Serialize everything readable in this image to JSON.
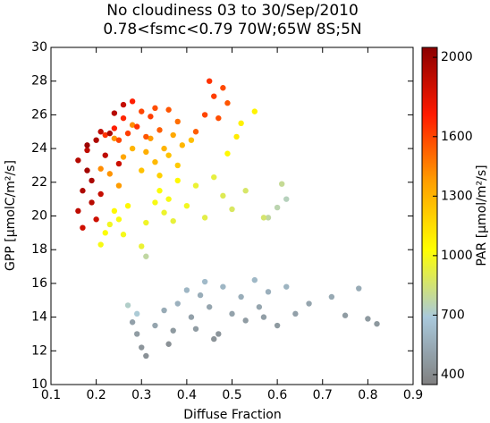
{
  "chart_data": {
    "type": "scatter",
    "title": "No cloudiness    03 to 30/Sep/2010",
    "subtitle": "0.78<fsmc<0.79    70W;65W 8S;5N",
    "x_label": "Diffuse Fraction",
    "y_label": "GPP [μmolC/m²/s]",
    "colorbar_label": "PAR [μmol/m²/s]",
    "xlim": [
      0.1,
      0.9
    ],
    "xticks": [
      0.1,
      0.2,
      0.3,
      0.4,
      0.5,
      0.6,
      0.7,
      0.8,
      0.9
    ],
    "ylim": [
      10,
      30
    ],
    "yticks": [
      10,
      12,
      14,
      16,
      18,
      20,
      22,
      24,
      26,
      28,
      30
    ],
    "clim": [
      350,
      2050
    ],
    "cticks": [
      400,
      700,
      1000,
      1300,
      1600,
      2000
    ],
    "colormap": [
      "#808080",
      "#a9c9dc",
      "#ffff00",
      "#ffa000",
      "#ff1a00",
      "#8b0000"
    ],
    "x": [
      0.28,
      0.29,
      0.3,
      0.31,
      0.33,
      0.35,
      0.37,
      0.38,
      0.4,
      0.41,
      0.42,
      0.43,
      0.44,
      0.45,
      0.47,
      0.48,
      0.5,
      0.52,
      0.53,
      0.55,
      0.56,
      0.58,
      0.6,
      0.62,
      0.64,
      0.67,
      0.72,
      0.75,
      0.78,
      0.8,
      0.82,
      0.46,
      0.36,
      0.57,
      0.27,
      0.29,
      0.31,
      0.6,
      0.62,
      0.61,
      0.58,
      0.21,
      0.22,
      0.23,
      0.24,
      0.25,
      0.26,
      0.27,
      0.3,
      0.31,
      0.33,
      0.34,
      0.35,
      0.36,
      0.37,
      0.38,
      0.4,
      0.42,
      0.44,
      0.46,
      0.48,
      0.5,
      0.53,
      0.57,
      0.51,
      0.52,
      0.49,
      0.55,
      0.26,
      0.28,
      0.3,
      0.31,
      0.32,
      0.33,
      0.34,
      0.35,
      0.36,
      0.37,
      0.38,
      0.39,
      0.41,
      0.23,
      0.25,
      0.21,
      0.24,
      0.28,
      0.22,
      0.24,
      0.25,
      0.26,
      0.27,
      0.28,
      0.29,
      0.3,
      0.31,
      0.32,
      0.33,
      0.34,
      0.36,
      0.38,
      0.44,
      0.45,
      0.46,
      0.47,
      0.48,
      0.49,
      0.42,
      0.16,
      0.17,
      0.17,
      0.18,
      0.18,
      0.19,
      0.2,
      0.21,
      0.19,
      0.2,
      0.22,
      0.23,
      0.24,
      0.26,
      0.18,
      0.16,
      0.21,
      0.25
    ],
    "y": [
      13.7,
      13.0,
      12.2,
      11.7,
      13.5,
      14.4,
      13.2,
      14.8,
      15.6,
      14.0,
      13.3,
      15.3,
      16.1,
      14.6,
      13.0,
      15.8,
      14.2,
      15.2,
      13.8,
      16.2,
      14.6,
      15.5,
      13.5,
      15.8,
      14.2,
      14.8,
      15.2,
      14.1,
      15.7,
      13.9,
      13.6,
      12.7,
      12.4,
      14.0,
      14.7,
      14.2,
      17.6,
      20.5,
      21.0,
      21.9,
      19.9,
      18.3,
      19.0,
      19.5,
      20.3,
      19.8,
      18.9,
      20.6,
      18.2,
      19.6,
      20.8,
      21.5,
      20.2,
      21.0,
      19.7,
      22.1,
      20.6,
      21.8,
      19.9,
      22.3,
      21.2,
      20.4,
      21.5,
      19.9,
      24.7,
      25.5,
      23.7,
      26.2,
      23.5,
      24.0,
      22.7,
      23.8,
      24.6,
      23.2,
      22.4,
      24.0,
      23.6,
      24.8,
      23.0,
      24.2,
      24.5,
      22.5,
      21.8,
      22.8,
      24.6,
      25.4,
      24.8,
      25.2,
      24.5,
      25.8,
      24.9,
      26.8,
      25.3,
      26.2,
      24.7,
      25.9,
      26.4,
      25.1,
      26.3,
      25.6,
      26.0,
      28.0,
      27.1,
      25.8,
      27.6,
      26.7,
      25.0,
      20.3,
      21.5,
      19.3,
      22.7,
      23.9,
      20.8,
      24.5,
      21.3,
      22.1,
      19.8,
      23.6,
      24.9,
      26.1,
      26.6,
      24.2,
      23.3,
      25.0,
      23.1
    ],
    "c": [
      500,
      480,
      450,
      430,
      520,
      550,
      470,
      580,
      600,
      500,
      480,
      560,
      620,
      520,
      450,
      600,
      510,
      560,
      480,
      610,
      520,
      570,
      470,
      590,
      500,
      520,
      540,
      480,
      550,
      470,
      460,
      440,
      430,
      490,
      720,
      700,
      780,
      760,
      740,
      800,
      780,
      1000,
      1020,
      980,
      1050,
      1010,
      990,
      1060,
      950,
      970,
      1000,
      1020,
      960,
      1000,
      940,
      1050,
      980,
      950,
      920,
      930,
      900,
      880,
      870,
      860,
      1100,
      1080,
      1050,
      1070,
      1350,
      1300,
      1250,
      1320,
      1380,
      1280,
      1200,
      1300,
      1250,
      1340,
      1220,
      1290,
      1260,
      1400,
      1380,
      1420,
      1400,
      1420,
      1650,
      1700,
      1600,
      1680,
      1620,
      1700,
      1650,
      1600,
      1560,
      1620,
      1580,
      1540,
      1560,
      1500,
      1600,
      1650,
      1620,
      1580,
      1590,
      1560,
      1540,
      1900,
      1950,
      1850,
      1980,
      1900,
      1920,
      1950,
      1880,
      1960,
      1860,
      1900,
      1950,
      1920,
      1880,
      2000,
      1930,
      1900,
      1860
    ]
  }
}
